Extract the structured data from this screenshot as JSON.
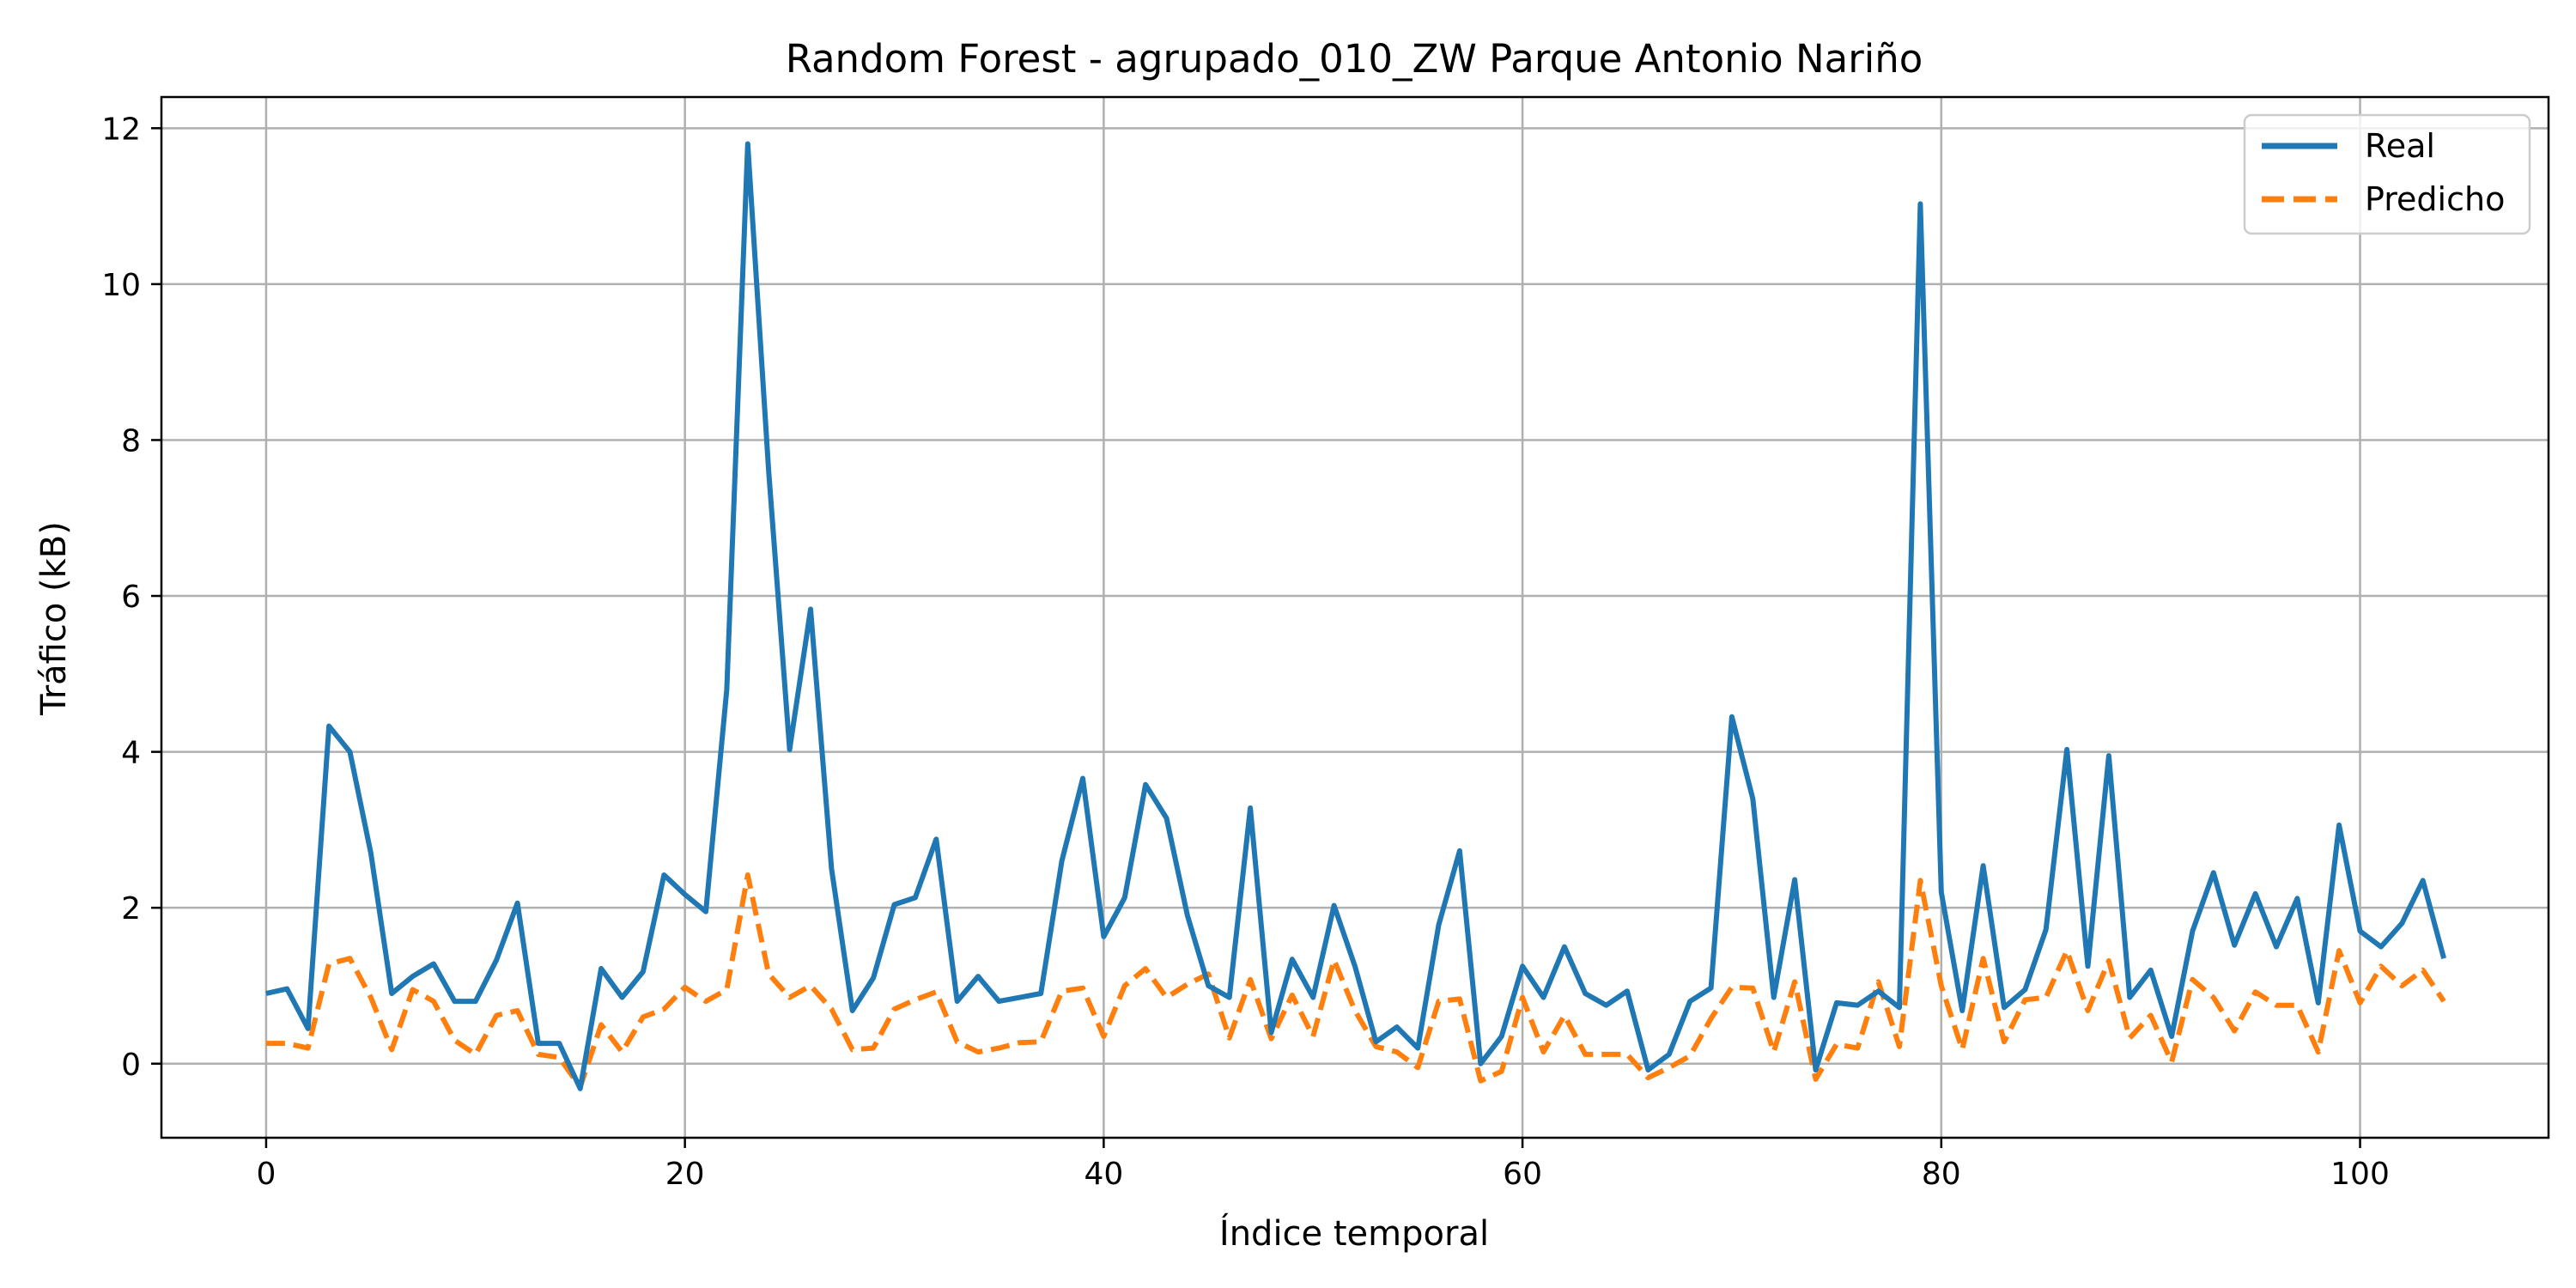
{
  "chart_data": {
    "type": "line",
    "title": "Random Forest - agrupado_010_ZW Parque Antonio Nariño",
    "xlabel": "Índice temporal",
    "ylabel": "Tráfico (kB)",
    "xlim": [
      -5,
      109
    ],
    "ylim": [
      -0.95,
      12.4
    ],
    "xticks": [
      0,
      20,
      40,
      60,
      80,
      100
    ],
    "yticks": [
      0,
      2,
      4,
      6,
      8,
      10,
      12
    ],
    "grid": true,
    "legend_position": "top-right",
    "series": [
      {
        "name": "Real",
        "color": "#1f77b4",
        "style": "solid",
        "values": [
          0.9,
          0.96,
          0.45,
          4.33,
          4.0,
          2.7,
          0.9,
          1.12,
          1.28,
          0.8,
          0.8,
          1.33,
          2.06,
          0.26,
          0.26,
          -0.32,
          1.22,
          0.85,
          1.18,
          2.42,
          2.17,
          1.95,
          4.8,
          11.8,
          7.6,
          4.03,
          5.83,
          2.5,
          0.68,
          1.1,
          2.04,
          2.13,
          2.88,
          0.8,
          1.12,
          0.8,
          0.85,
          0.9,
          2.6,
          3.66,
          1.63,
          2.13,
          3.58,
          3.15,
          1.9,
          1.0,
          0.85,
          3.28,
          0.4,
          1.34,
          0.85,
          2.03,
          1.25,
          0.28,
          0.47,
          0.2,
          1.78,
          2.73,
          0.0,
          0.35,
          1.25,
          0.85,
          1.5,
          0.9,
          0.75,
          0.93,
          -0.08,
          0.12,
          0.8,
          0.97,
          4.45,
          3.4,
          0.85,
          2.36,
          -0.08,
          0.78,
          0.75,
          0.93,
          0.72,
          11.03,
          2.2,
          0.68,
          2.54,
          0.72,
          0.95,
          1.72,
          4.03,
          1.25,
          3.95,
          0.85,
          1.2,
          0.35,
          1.7,
          2.45,
          1.52,
          2.18,
          1.5,
          2.12,
          0.78,
          3.06,
          1.7,
          1.5,
          1.8,
          2.35,
          1.35
        ]
      },
      {
        "name": "Predicho",
        "color": "#ff7f0e",
        "style": "dashed",
        "values": [
          0.26,
          0.26,
          0.2,
          1.28,
          1.35,
          0.85,
          0.18,
          0.95,
          0.8,
          0.3,
          0.12,
          0.62,
          0.68,
          0.12,
          0.08,
          -0.3,
          0.5,
          0.15,
          0.6,
          0.7,
          0.98,
          0.8,
          0.95,
          2.42,
          1.15,
          0.85,
          1.0,
          0.7,
          0.18,
          0.2,
          0.7,
          0.82,
          0.92,
          0.28,
          0.15,
          0.2,
          0.27,
          0.28,
          0.93,
          0.97,
          0.35,
          1.0,
          1.22,
          0.85,
          1.02,
          1.15,
          0.33,
          1.08,
          0.32,
          0.88,
          0.35,
          1.33,
          0.68,
          0.22,
          0.15,
          -0.05,
          0.8,
          0.83,
          -0.22,
          -0.1,
          0.85,
          0.15,
          0.62,
          0.12,
          0.12,
          0.12,
          -0.18,
          -0.05,
          0.1,
          0.58,
          0.98,
          0.97,
          0.15,
          1.05,
          -0.2,
          0.25,
          0.2,
          1.05,
          0.22,
          2.35,
          1.0,
          0.18,
          1.35,
          0.28,
          0.82,
          0.85,
          1.45,
          0.68,
          1.32,
          0.33,
          0.62,
          0.02,
          1.08,
          0.85,
          0.42,
          0.92,
          0.75,
          0.75,
          0.15,
          1.45,
          0.78,
          1.25,
          1.0,
          1.2,
          0.8
        ]
      }
    ]
  }
}
